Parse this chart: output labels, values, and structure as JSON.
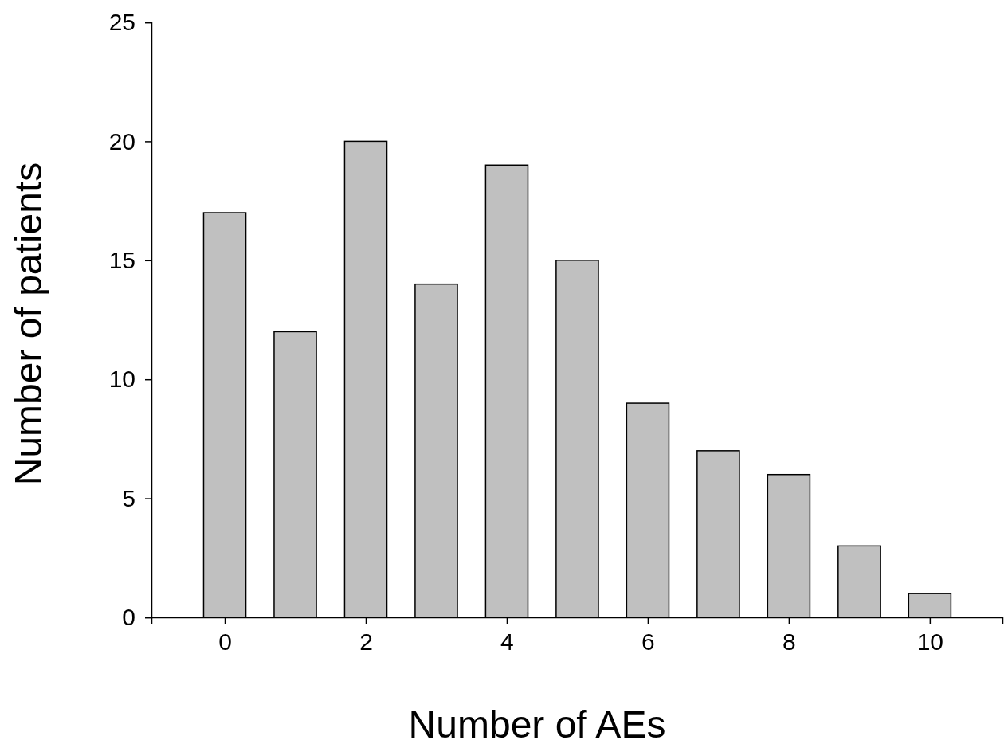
{
  "chart_data": {
    "type": "bar",
    "xlabel": "Number of AEs",
    "ylabel": "Number of patients",
    "x": [
      0,
      1,
      2,
      3,
      4,
      5,
      6,
      7,
      8,
      9,
      10
    ],
    "values": [
      17,
      12,
      20,
      14,
      19,
      15,
      9,
      7,
      6,
      3,
      1
    ],
    "color": "#c0c0c0",
    "xlim": [
      -1.04,
      11.03
    ],
    "xticks": [
      0,
      2,
      4,
      6,
      8,
      10
    ],
    "ylim": [
      0,
      25
    ],
    "yticks": [
      0,
      5,
      10,
      15,
      20,
      25
    ],
    "grid": false
  }
}
